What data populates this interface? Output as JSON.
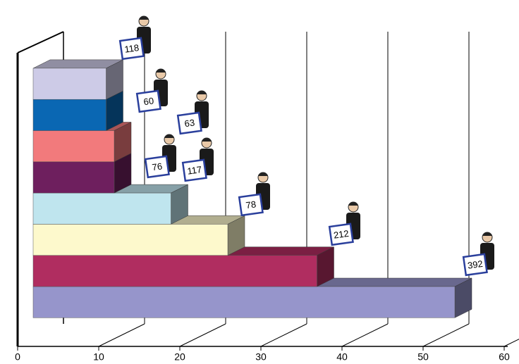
{
  "chart_data": {
    "type": "bar3d",
    "orientation": "horizontal",
    "values": [
      52,
      35,
      24,
      17,
      10,
      10,
      9,
      9
    ],
    "colors": [
      "#9695cb",
      "#b02d60",
      "#fdf9cc",
      "#bfe5ee",
      "#6e1f5e",
      "#f27a7c",
      "#0a67b3",
      "#cdcbe7"
    ],
    "annotations": [
      "392",
      "212",
      "78",
      "117",
      "76",
      "63",
      "60",
      "118"
    ],
    "xlim": [
      0,
      60
    ],
    "xticks": [
      0,
      10,
      20,
      30,
      40,
      50,
      60
    ],
    "grid": true
  }
}
